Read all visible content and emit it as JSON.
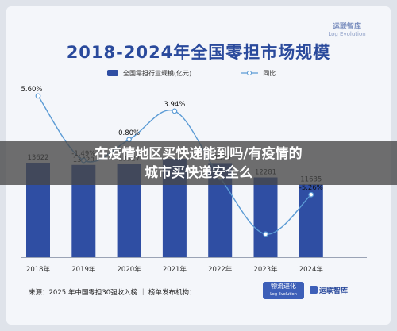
{
  "watermark": {
    "line1": "运联智库",
    "line2": "Log Evolution"
  },
  "chart_data": {
    "type": "bar",
    "title": "2018-2024年全国零担市场规模",
    "categories": [
      "2018年",
      "2019年",
      "2020年",
      "2021年",
      "2022年",
      "2023年",
      "2024年"
    ],
    "series": [
      {
        "name": "全国零担行业规模(亿元)",
        "kind": "bar",
        "color": "#2f4ea3",
        "values": [
          13622,
          13420,
          13527,
          13980,
          13590,
          12281,
          11635
        ],
        "labels": [
          "13622",
          "13420",
          "13527",
          "",
          "13590",
          "12281",
          "11635"
        ]
      },
      {
        "name": "同比",
        "kind": "line",
        "color": "#5b9bd5",
        "values": [
          5.6,
          -1.49,
          0.8,
          3.94,
          -3.4,
          -9.6,
          -5.26
        ],
        "labels": [
          "5.60%",
          "-1.49%",
          "0.80%",
          "3.94%",
          "",
          "",
          "-5.26%"
        ]
      }
    ],
    "legend": "top",
    "grid": false
  },
  "banner": {
    "line1": "在疫情地区买快递能到吗/有疫情的",
    "line2": "城市买快递安全么"
  },
  "footer": {
    "source": "来源：2025 年中国零担30强收入榜 ｜ 榜单发布机构：",
    "logo1": "物流进化",
    "logo1_sub": "Log Evolution",
    "logo2": "运联智库"
  }
}
